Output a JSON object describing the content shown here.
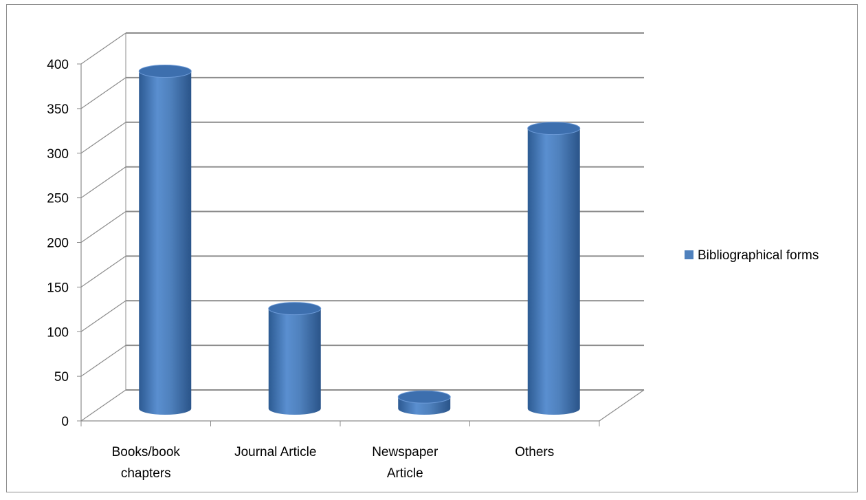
{
  "chart_data": {
    "type": "bar",
    "style": "3d-cylinder",
    "categories": [
      [
        "Books/book",
        "chapters"
      ],
      [
        "Journal Article"
      ],
      [
        "Newspaper",
        "Article"
      ],
      [
        "Others"
      ]
    ],
    "series": [
      {
        "name": "Bibliographical forms",
        "values": [
          378,
          112,
          13,
          314
        ],
        "color": "#4f81bd"
      }
    ],
    "yticks": [
      0,
      50,
      100,
      150,
      200,
      250,
      300,
      350,
      400
    ],
    "ylim": [
      0,
      400
    ],
    "grid": true,
    "legend": "right"
  }
}
